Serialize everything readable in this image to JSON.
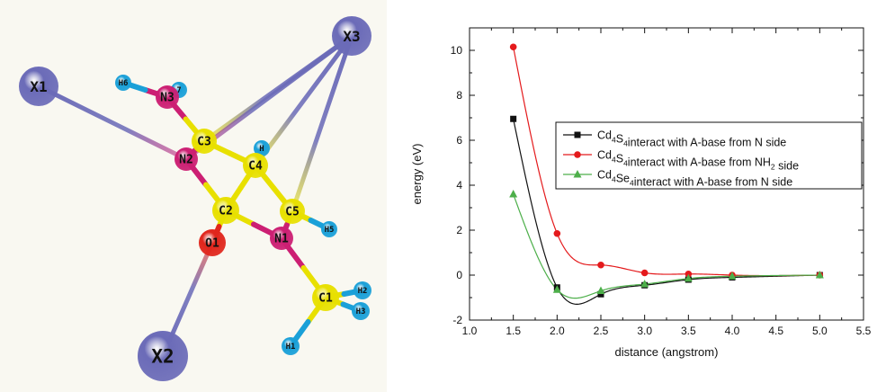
{
  "molecule": {
    "background": "#f9f8f1",
    "colors": {
      "C": "#e8e000",
      "N": "#cc1f73",
      "O": "#e0261c",
      "H": "#1aa0d8",
      "X": "#6b6bb8"
    },
    "atoms": [
      {
        "id": "X1",
        "label": "X1",
        "element": "X"
      },
      {
        "id": "X2",
        "label": "X2",
        "element": "X"
      },
      {
        "id": "X3",
        "label": "X3",
        "element": "X"
      },
      {
        "id": "H6",
        "label": "H6",
        "element": "H"
      },
      {
        "id": "H7",
        "label": "7",
        "element": "H"
      },
      {
        "id": "N3",
        "label": "N3",
        "element": "N"
      },
      {
        "id": "C3",
        "label": "C3",
        "element": "C"
      },
      {
        "id": "N2",
        "label": "N2",
        "element": "N"
      },
      {
        "id": "H4",
        "label": "H",
        "element": "H"
      },
      {
        "id": "C4",
        "label": "C4",
        "element": "C"
      },
      {
        "id": "C2",
        "label": "C2",
        "element": "C"
      },
      {
        "id": "C5",
        "label": "C5",
        "element": "C"
      },
      {
        "id": "H5",
        "label": "H5",
        "element": "H"
      },
      {
        "id": "O1",
        "label": "O1",
        "element": "O"
      },
      {
        "id": "N1",
        "label": "N1",
        "element": "N"
      },
      {
        "id": "C1",
        "label": "C1",
        "element": "C"
      },
      {
        "id": "H2",
        "label": "H2",
        "element": "H"
      },
      {
        "id": "H3",
        "label": "H3",
        "element": "H"
      },
      {
        "id": "H1",
        "label": "H1",
        "element": "H"
      }
    ],
    "bonds": [
      [
        "X1",
        "N2",
        "X"
      ],
      [
        "X2",
        "O1",
        "X"
      ],
      [
        "X3",
        "C3",
        "X"
      ],
      [
        "X3",
        "C4",
        "X"
      ],
      [
        "X3",
        "C5",
        "X"
      ],
      [
        "X3",
        "N2",
        "X"
      ],
      [
        "N3",
        "H6",
        "N"
      ],
      [
        "N3",
        "H7",
        "N"
      ],
      [
        "N3",
        "C3",
        "N"
      ],
      [
        "C3",
        "N2",
        "C"
      ],
      [
        "C3",
        "C4",
        "C"
      ],
      [
        "N2",
        "C2",
        "N"
      ],
      [
        "C4",
        "C2",
        "C"
      ],
      [
        "C4",
        "C5",
        "C"
      ],
      [
        "C4",
        "H4",
        "C"
      ],
      [
        "C2",
        "O1",
        "C"
      ],
      [
        "C2",
        "N1",
        "C"
      ],
      [
        "C5",
        "N1",
        "C"
      ],
      [
        "C5",
        "H5",
        "C"
      ],
      [
        "N1",
        "C1",
        "N"
      ],
      [
        "C1",
        "H2",
        "C"
      ],
      [
        "C1",
        "H3",
        "C"
      ],
      [
        "C1",
        "H1",
        "C"
      ]
    ]
  },
  "chart_data": {
    "type": "scatter",
    "xlabel": "distance (angstrom)",
    "ylabel": "energy (eV)",
    "xlim": [
      1.0,
      5.5
    ],
    "ylim": [
      -2,
      11
    ],
    "xticks": [
      "1.0",
      "1.5",
      "2.0",
      "2.5",
      "3.0",
      "3.5",
      "4.0",
      "4.5",
      "5.0",
      "5.5"
    ],
    "yticks": [
      "-2",
      "0",
      "2",
      "4",
      "6",
      "8",
      "10"
    ],
    "grid": false,
    "legend_position": "top-right",
    "series": [
      {
        "name": "Cd4S4interact with A-base from N side",
        "legend": {
          "a": "Cd",
          "s1": "4",
          "b": "S",
          "s2": "4",
          "c": "interact with A-base from N side"
        },
        "marker": "square",
        "color": "#111111",
        "x": [
          1.5,
          2.0,
          2.5,
          3.0,
          3.5,
          4.0,
          5.0
        ],
        "y": [
          6.95,
          -0.55,
          -0.85,
          -0.45,
          -0.2,
          -0.1,
          0.0
        ]
      },
      {
        "name": "Cd4S4interact with A-base from NH2 side",
        "legend": {
          "a": "Cd",
          "s1": "4",
          "b": "S",
          "s2": "4",
          "c": "interact with A-base from NH",
          "s3": "2",
          "d": " side"
        },
        "marker": "circle",
        "color": "#e41a1c",
        "x": [
          1.5,
          2.0,
          2.5,
          3.0,
          3.5,
          4.0,
          5.0
        ],
        "y": [
          10.15,
          1.85,
          0.45,
          0.1,
          0.05,
          0.0,
          0.0
        ]
      },
      {
        "name": "Cd4Se4interact with A-base from N side",
        "legend": {
          "a": "Cd",
          "s1": "4",
          "b": "Se",
          "s2": "4",
          "c": "interact with A-base from N side"
        },
        "marker": "triangle",
        "color": "#4daf4a",
        "x": [
          1.5,
          2.0,
          2.5,
          3.0,
          3.5,
          4.0,
          5.0
        ],
        "y": [
          3.6,
          -0.65,
          -0.7,
          -0.4,
          -0.15,
          -0.05,
          0.0
        ]
      }
    ]
  }
}
